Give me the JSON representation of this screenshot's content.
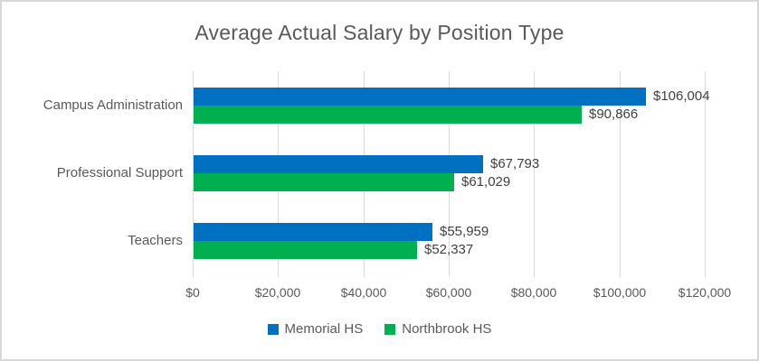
{
  "chart_data": {
    "type": "bar",
    "orientation": "horizontal",
    "title": "Average Actual Salary by Position Type",
    "categories": [
      "Campus Administration",
      "Professional Support",
      "Teachers"
    ],
    "series": [
      {
        "name": "Memorial HS",
        "color": "#0070C0",
        "values": [
          106004,
          67793,
          55959
        ],
        "labels": [
          "$106,004",
          "$67,793",
          "$55,959"
        ]
      },
      {
        "name": "Northbrook HS",
        "color": "#00B050",
        "values": [
          90866,
          61029,
          52337
        ],
        "labels": [
          "$90,866",
          "$61,029",
          "$52,337"
        ]
      }
    ],
    "x_axis": {
      "min": 0,
      "max": 120000,
      "ticks": [
        0,
        20000,
        40000,
        60000,
        80000,
        100000,
        120000
      ],
      "tick_labels": [
        "$0",
        "$20,000",
        "$40,000",
        "$60,000",
        "$80,000",
        "$100,000",
        "$120,000"
      ]
    },
    "legend": {
      "position": "bottom",
      "entries": [
        "Memorial HS",
        "Northbrook HS"
      ]
    },
    "gridlines": true,
    "colors": {
      "gridline": "#d9d9d9",
      "title_text": "#595959",
      "axis_text": "#595959",
      "data_label_text": "#404040"
    }
  }
}
